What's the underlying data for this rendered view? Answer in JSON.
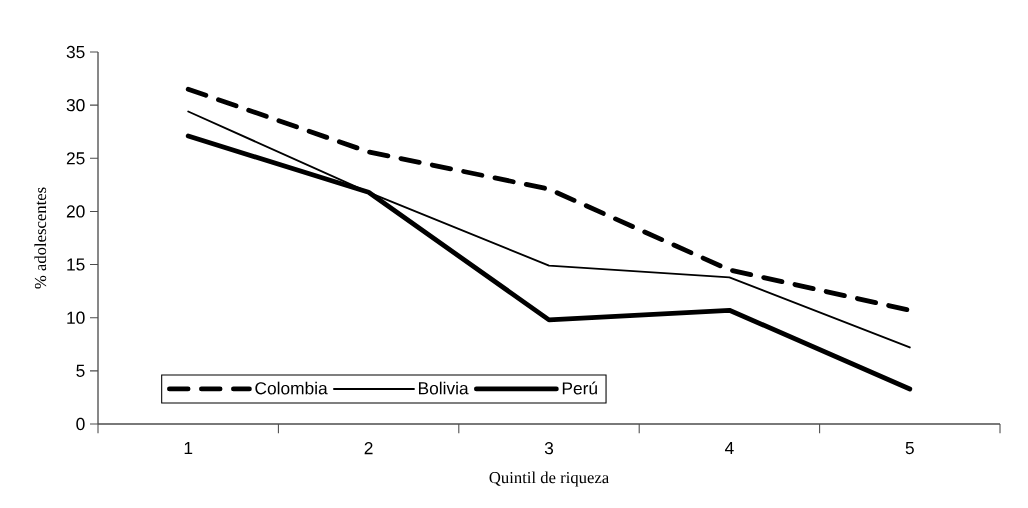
{
  "chart_data": {
    "type": "line",
    "xlabel": "Quintil de riqueza",
    "ylabel": "% adolescentes",
    "categories": [
      "1",
      "2",
      "3",
      "4",
      "5"
    ],
    "series": [
      {
        "name": "Colombia",
        "color": "#000000",
        "line_style": "dashed",
        "values": [
          31.5,
          25.6,
          22.1,
          14.5,
          10.7
        ]
      },
      {
        "name": "Bolivia",
        "color": "#000000",
        "line_style": "solid",
        "values": [
          29.4,
          21.8,
          14.9,
          13.8,
          7.2
        ]
      },
      {
        "name": "Perú",
        "color": "#000000",
        "line_style": "solid",
        "values": [
          27.1,
          21.8,
          9.8,
          10.7,
          3.3
        ]
      }
    ],
    "ylim": [
      0,
      35
    ],
    "yticks": [
      0,
      5,
      10,
      15,
      20,
      25,
      30,
      35
    ],
    "grid": false,
    "legend": "bottom left",
    "marker": "none"
  }
}
